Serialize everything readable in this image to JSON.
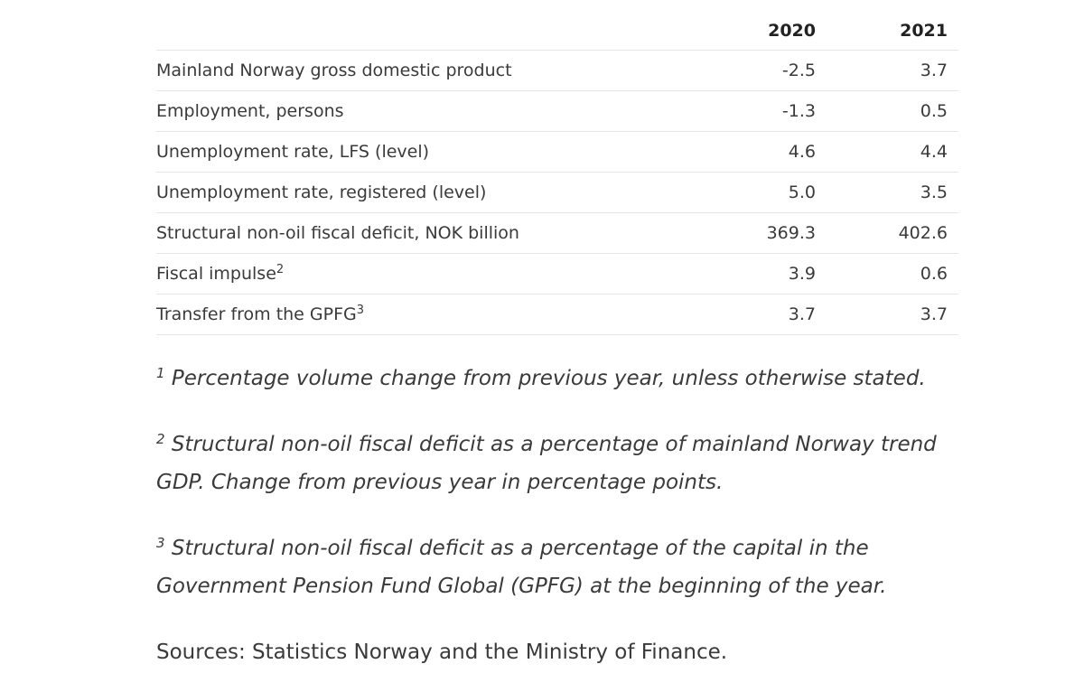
{
  "table": {
    "headers": [
      "",
      "2020",
      "2021"
    ],
    "rows": [
      {
        "label": "Mainland Norway gross domestic product",
        "sup": "",
        "v2020": "-2.5",
        "v2021": "3.7"
      },
      {
        "label": "Employment, persons",
        "sup": "",
        "v2020": "-1.3",
        "v2021": "0.5"
      },
      {
        "label": "Unemployment rate, LFS (level)",
        "sup": "",
        "v2020": "4.6",
        "v2021": "4.4"
      },
      {
        "label": "Unemployment rate, registered (level)",
        "sup": "",
        "v2020": "5.0",
        "v2021": "3.5"
      },
      {
        "label": "Structural non-oil fiscal deficit, NOK billion",
        "sup": "",
        "v2020": "369.3",
        "v2021": "402.6"
      },
      {
        "label": "Fiscal impulse",
        "sup": "2",
        "v2020": "3.9",
        "v2021": "0.6"
      },
      {
        "label": "Transfer from the GPFG",
        "sup": "3",
        "v2020": "3.7",
        "v2021": "3.7"
      }
    ]
  },
  "footnotes": [
    {
      "marker": "1",
      "text": "Percentage volume change from previous year, unless otherwise stated."
    },
    {
      "marker": "2",
      "text": "Structural non-oil fiscal deficit as a percentage of mainland Norway trend GDP. Change from previous year in percentage points."
    },
    {
      "marker": "3",
      "text": "Structural non-oil fiscal deficit as a percentage of the capital in the Government Pension Fund Global (GPFG) at the beginning of the year."
    }
  ],
  "sources": "Sources: Statistics Norway and the Ministry of Finance."
}
